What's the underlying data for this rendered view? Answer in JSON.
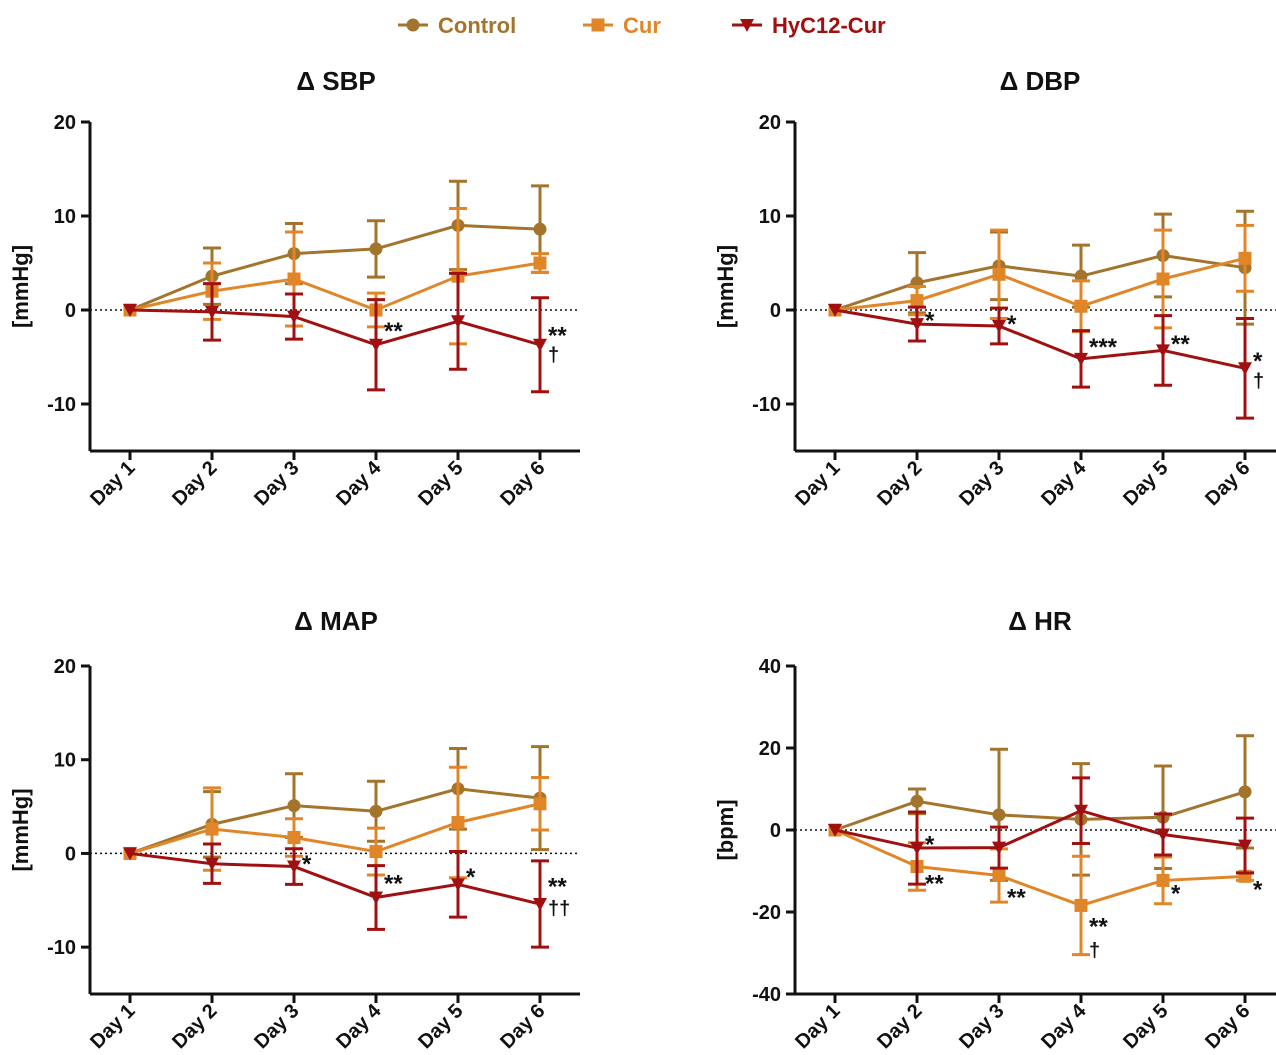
{
  "legend": [
    {
      "name": "Control",
      "color": "#A2742C",
      "marker": "circle"
    },
    {
      "name": "Cur",
      "color": "#E08628",
      "marker": "square"
    },
    {
      "name": "HyC12-Cur",
      "color": "#A01010",
      "marker": "triangle-down"
    }
  ],
  "chart_data": [
    {
      "type": "line",
      "title": "Δ SBP",
      "ylabel": "[mmHg]",
      "categories": [
        "Day 1",
        "Day 2",
        "Day 3",
        "Day 4",
        "Day 5",
        "Day 6"
      ],
      "ylim": [
        -15,
        20
      ],
      "yticks": [
        -10,
        0,
        10,
        20
      ],
      "series": [
        {
          "name": "Control",
          "values": [
            0,
            3.6,
            6.0,
            6.5,
            9.0,
            8.6
          ],
          "error": [
            0,
            3.0,
            3.2,
            3.0,
            4.7,
            4.6
          ]
        },
        {
          "name": "Cur",
          "values": [
            0,
            2.0,
            3.3,
            0.0,
            3.6,
            5.0
          ],
          "error": [
            0,
            3.0,
            5.0,
            1.8,
            7.2,
            1.0
          ]
        },
        {
          "name": "HyC12-Cur",
          "values": [
            0,
            -0.2,
            -0.7,
            -3.7,
            -1.2,
            -3.7
          ],
          "error": [
            0,
            3.0,
            2.4,
            4.8,
            5.1,
            5.0
          ]
        }
      ],
      "annotations": [
        {
          "category": "Day 4",
          "value": -2.0,
          "text": "**"
        },
        {
          "category": "Day 6",
          "value": -2.5,
          "text": "**"
        },
        {
          "category": "Day 6",
          "value": -4.4,
          "text": "†"
        }
      ]
    },
    {
      "type": "line",
      "title": "Δ DBP",
      "ylabel": "[mmHg]",
      "categories": [
        "Day 1",
        "Day 2",
        "Day 3",
        "Day 4",
        "Day 5",
        "Day 6"
      ],
      "ylim": [
        -15,
        20
      ],
      "yticks": [
        -10,
        0,
        10,
        20
      ],
      "series": [
        {
          "name": "Control",
          "values": [
            0,
            2.9,
            4.7,
            3.6,
            5.8,
            4.5
          ],
          "error": [
            0,
            3.2,
            3.6,
            3.3,
            4.4,
            6.0
          ]
        },
        {
          "name": "Cur",
          "values": [
            0,
            1.0,
            3.8,
            0.4,
            3.3,
            5.5
          ],
          "error": [
            0,
            1.5,
            4.7,
            2.7,
            5.2,
            3.5
          ]
        },
        {
          "name": "HyC12-Cur",
          "values": [
            0,
            -1.5,
            -1.7,
            -5.2,
            -4.3,
            -6.2
          ],
          "error": [
            0,
            1.8,
            1.9,
            3.0,
            3.7,
            5.3
          ]
        }
      ],
      "annotations": [
        {
          "category": "Day 2",
          "value": -0.9,
          "text": "*"
        },
        {
          "category": "Day 3",
          "value": -1.3,
          "text": "*"
        },
        {
          "category": "Day 4",
          "value": -3.7,
          "text": "***"
        },
        {
          "category": "Day 5",
          "value": -3.4,
          "text": "**"
        },
        {
          "category": "Day 6",
          "value": -5.2,
          "text": "*"
        },
        {
          "category": "Day 6",
          "value": -7.2,
          "text": "†"
        }
      ]
    },
    {
      "type": "line",
      "title": "Δ MAP",
      "ylabel": "[mmHg]",
      "categories": [
        "Day 1",
        "Day 2",
        "Day 3",
        "Day 4",
        "Day 5",
        "Day 6"
      ],
      "ylim": [
        -15,
        20
      ],
      "yticks": [
        -10,
        0,
        10,
        20
      ],
      "series": [
        {
          "name": "Control",
          "values": [
            0,
            3.1,
            5.1,
            4.5,
            6.9,
            5.9
          ],
          "error": [
            0,
            3.5,
            3.4,
            3.2,
            4.3,
            5.5
          ]
        },
        {
          "name": "Cur",
          "values": [
            0,
            2.6,
            1.7,
            0.2,
            3.3,
            5.3
          ],
          "error": [
            0,
            4.4,
            2.0,
            2.5,
            5.9,
            2.8
          ]
        },
        {
          "name": "HyC12-Cur",
          "values": [
            0,
            -1.1,
            -1.4,
            -4.7,
            -3.3,
            -5.4
          ],
          "error": [
            0,
            2.1,
            1.9,
            3.4,
            3.5,
            4.6
          ]
        }
      ],
      "annotations": [
        {
          "category": "Day 3",
          "value": -0.9,
          "text": "*"
        },
        {
          "category": "Day 4",
          "value": -3.0,
          "text": "**"
        },
        {
          "category": "Day 5",
          "value": -2.3,
          "text": "*"
        },
        {
          "category": "Day 6",
          "value": -3.3,
          "text": "**"
        },
        {
          "category": "Day 6",
          "value": -5.5,
          "text": "††"
        }
      ]
    },
    {
      "type": "line",
      "title": "Δ HR",
      "ylabel": "[bpm]",
      "categories": [
        "Day 1",
        "Day 2",
        "Day 3",
        "Day 4",
        "Day 5",
        "Day 6"
      ],
      "ylim": [
        -40,
        40
      ],
      "yticks": [
        -40,
        -20,
        0,
        20,
        40
      ],
      "series": [
        {
          "name": "Control",
          "values": [
            0,
            7.0,
            3.7,
            2.6,
            3.1,
            9.3
          ],
          "error": [
            0,
            3.0,
            16.0,
            13.6,
            12.5,
            13.7
          ]
        },
        {
          "name": "Cur",
          "values": [
            0,
            -8.9,
            -11.1,
            -18.4,
            -12.3,
            -11.3
          ],
          "error": [
            0,
            5.8,
            6.5,
            12.0,
            5.7,
            1.0
          ]
        },
        {
          "name": "HyC12-Cur",
          "values": [
            0,
            -4.4,
            -4.3,
            4.7,
            -1.1,
            -3.8
          ],
          "error": [
            0,
            8.8,
            5.0,
            8.0,
            5.0,
            6.7
          ]
        }
      ],
      "annotations": [
        {
          "category": "Day 2",
          "value": -3.0,
          "text": "*"
        },
        {
          "category": "Day 2",
          "value": -12.5,
          "text": "**"
        },
        {
          "category": "Day 3",
          "value": -16.0,
          "text": "**"
        },
        {
          "category": "Day 4",
          "value": -23.0,
          "text": "**"
        },
        {
          "category": "Day 4",
          "value": -28.5,
          "text": "†"
        },
        {
          "category": "Day 5",
          "value": -15.0,
          "text": "*"
        },
        {
          "category": "Day 6",
          "value": -14.0,
          "text": "*"
        }
      ]
    }
  ]
}
